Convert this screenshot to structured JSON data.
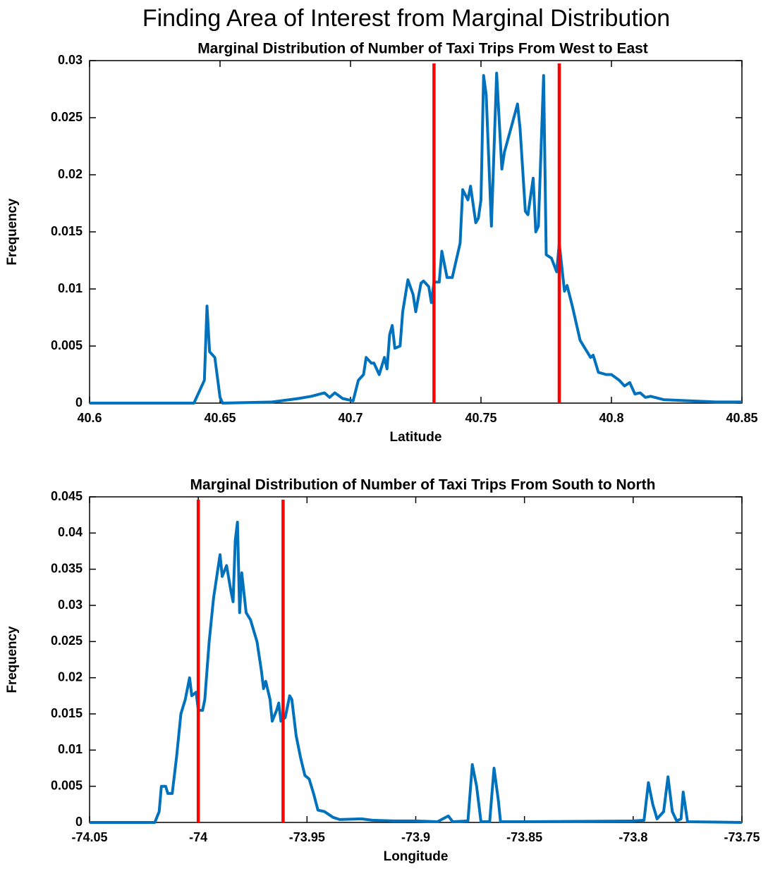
{
  "title": "Finding Area of Interest from Marginal Distribution",
  "chart_data": [
    {
      "type": "line",
      "title": "Marginal Distribution of Number of Taxi Trips From West to East",
      "xlabel": "Latitude",
      "ylabel": "Frequency",
      "color": "#0072bd",
      "xlim": [
        40.6,
        40.85
      ],
      "xticks": [
        40.6,
        40.65,
        40.7,
        40.75,
        40.8,
        40.85
      ],
      "ylim": [
        0,
        0.03
      ],
      "yticks": [
        0,
        0.005,
        0.01,
        0.015,
        0.02,
        0.025,
        0.03
      ],
      "vlines": [
        40.732,
        40.78
      ],
      "vline_color": "#ff0000",
      "x": [
        40.6,
        40.64,
        40.642,
        40.644,
        40.645,
        40.646,
        40.648,
        40.65,
        40.651,
        40.67,
        40.68,
        40.685,
        40.69,
        40.692,
        40.694,
        40.697,
        40.701,
        40.703,
        40.705,
        40.706,
        40.708,
        40.709,
        40.711,
        40.713,
        40.714,
        40.715,
        40.716,
        40.717,
        40.719,
        40.72,
        40.722,
        40.724,
        40.725,
        40.727,
        40.728,
        40.73,
        40.731,
        40.732,
        40.734,
        40.735,
        40.737,
        40.739,
        40.742,
        40.743,
        40.745,
        40.746,
        40.748,
        40.749,
        40.75,
        40.751,
        40.752,
        40.754,
        40.756,
        40.758,
        40.759,
        40.762,
        40.764,
        40.765,
        40.767,
        40.768,
        40.77,
        40.771,
        40.772,
        40.774,
        40.775,
        40.777,
        40.779,
        40.78,
        40.782,
        40.783,
        40.785,
        40.788,
        40.792,
        40.793,
        40.795,
        40.798,
        40.8,
        40.803,
        40.805,
        40.807,
        40.809,
        40.811,
        40.813,
        40.815,
        40.82,
        40.83,
        40.84,
        40.85
      ],
      "values": [
        0,
        0,
        0.001,
        0.002,
        0.0085,
        0.0045,
        0.004,
        0.0005,
        0,
        0.0001,
        0.0004,
        0.0006,
        0.0009,
        0.0005,
        0.0009,
        0.0004,
        0.0002,
        0.002,
        0.0025,
        0.004,
        0.0035,
        0.0035,
        0.0025,
        0.004,
        0.003,
        0.006,
        0.0068,
        0.0048,
        0.005,
        0.008,
        0.0108,
        0.0095,
        0.008,
        0.0105,
        0.0107,
        0.0102,
        0.0088,
        0.0106,
        0.0106,
        0.0133,
        0.011,
        0.011,
        0.014,
        0.0187,
        0.0178,
        0.019,
        0.0158,
        0.0162,
        0.0178,
        0.0287,
        0.027,
        0.0155,
        0.0289,
        0.0205,
        0.022,
        0.0245,
        0.0262,
        0.024,
        0.0168,
        0.0165,
        0.0197,
        0.015,
        0.0155,
        0.0287,
        0.013,
        0.0127,
        0.0115,
        0.014,
        0.0098,
        0.0103,
        0.0085,
        0.0055,
        0.004,
        0.0042,
        0.0027,
        0.0025,
        0.0025,
        0.002,
        0.0015,
        0.0018,
        0.0008,
        0.0009,
        0.0005,
        0.0006,
        0.0003,
        0.0002,
        0.0001,
        0.0001
      ]
    },
    {
      "type": "line",
      "title": "Marginal Distribution of Number of Taxi Trips From South to North",
      "xlabel": "Longitude",
      "ylabel": "Frequency",
      "color": "#0072bd",
      "xlim": [
        -74.05,
        -73.75
      ],
      "xticks": [
        -74.05,
        -74,
        -73.95,
        -73.9,
        -73.85,
        -73.8,
        -73.75
      ],
      "ylim": [
        0,
        0.045
      ],
      "yticks": [
        0,
        0.005,
        0.01,
        0.015,
        0.02,
        0.025,
        0.03,
        0.035,
        0.04,
        0.045
      ],
      "vlines": [
        -74.0,
        -73.961
      ],
      "vline_color": "#ff0000",
      "x": [
        -74.05,
        -74.02,
        -74.018,
        -74.017,
        -74.015,
        -74.014,
        -74.012,
        -74.01,
        -74.008,
        -74.006,
        -74.004,
        -74.003,
        -74.001,
        -74.0,
        -73.998,
        -73.997,
        -73.995,
        -73.993,
        -73.991,
        -73.99,
        -73.989,
        -73.987,
        -73.985,
        -73.984,
        -73.983,
        -73.982,
        -73.981,
        -73.98,
        -73.978,
        -73.976,
        -73.974,
        -73.973,
        -73.971,
        -73.97,
        -73.969,
        -73.967,
        -73.966,
        -73.964,
        -73.963,
        -73.962,
        -73.96,
        -73.958,
        -73.957,
        -73.955,
        -73.953,
        -73.951,
        -73.949,
        -73.947,
        -73.945,
        -73.942,
        -73.938,
        -73.935,
        -73.925,
        -73.92,
        -73.91,
        -73.9,
        -73.89,
        -73.885,
        -73.883,
        -73.876,
        -73.874,
        -73.872,
        -73.87,
        -73.866,
        -73.864,
        -73.862,
        -73.861,
        -73.85,
        -73.8,
        -73.795,
        -73.793,
        -73.791,
        -73.789,
        -73.786,
        -73.784,
        -73.782,
        -73.78,
        -73.778,
        -73.777,
        -73.775,
        -73.75
      ],
      "values": [
        0,
        0,
        0.0015,
        0.005,
        0.005,
        0.004,
        0.004,
        0.009,
        0.015,
        0.017,
        0.02,
        0.0175,
        0.018,
        0.0155,
        0.0155,
        0.017,
        0.025,
        0.031,
        0.035,
        0.037,
        0.034,
        0.0355,
        0.032,
        0.0305,
        0.039,
        0.0415,
        0.029,
        0.0345,
        0.029,
        0.028,
        0.026,
        0.025,
        0.021,
        0.0185,
        0.0195,
        0.017,
        0.014,
        0.0155,
        0.0165,
        0.014,
        0.0145,
        0.0175,
        0.017,
        0.012,
        0.009,
        0.0065,
        0.006,
        0.004,
        0.0017,
        0.0015,
        0.0007,
        0.0004,
        0.0005,
        0.0003,
        0.0002,
        0.0002,
        0.0001,
        0.0009,
        0.0001,
        0.0002,
        0.008,
        0.005,
        0.0001,
        0.0001,
        0.0075,
        0.003,
        0.0001,
        0.0001,
        0.0002,
        0.0003,
        0.0055,
        0.0025,
        0.0005,
        0.0015,
        0.0063,
        0.0015,
        0.0002,
        0.0005,
        0.0042,
        0.0001,
        0
      ]
    }
  ]
}
